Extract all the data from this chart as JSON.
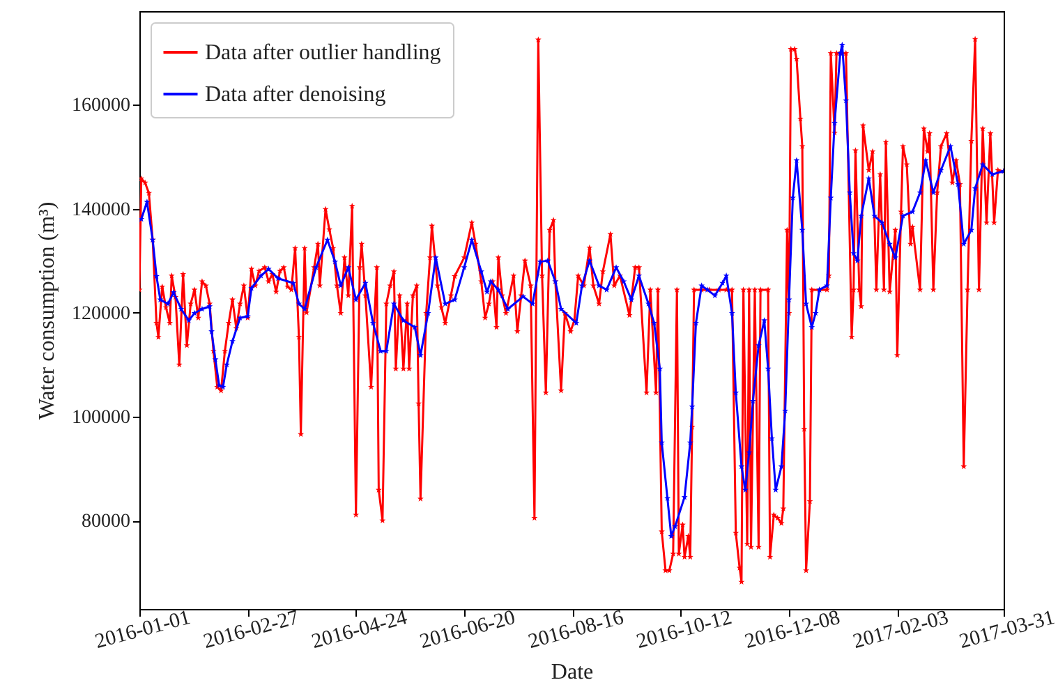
{
  "chart_data": {
    "type": "line",
    "xlabel": "Date",
    "ylabel": "Water consumption (m³)",
    "xlim": [
      "2016-01-01",
      "2017-03-31"
    ],
    "xticks": [
      "2016-01-01",
      "2016-02-27",
      "2016-04-24",
      "2016-06-20",
      "2016-08-16",
      "2016-10-12",
      "2016-12-08",
      "2017-02-03",
      "2017-03-31"
    ],
    "ylim": [
      63000,
      178000
    ],
    "yticks": [
      80000,
      100000,
      120000,
      140000,
      160000
    ],
    "grid": false,
    "legend": "top left",
    "marker": "star",
    "line_style": "solid",
    "series": [
      {
        "name": "Data after outlier handling",
        "color": "#ff0000",
        "x": [
          "2016-01-01",
          "2016-01-02",
          "2016-01-04",
          "2016-01-06",
          "2016-01-08",
          "2016-01-10",
          "2016-01-11",
          "2016-01-13",
          "2016-01-15",
          "2016-01-17",
          "2016-01-18",
          "2016-01-20",
          "2016-01-22",
          "2016-01-24",
          "2016-01-26",
          "2016-01-28",
          "2016-01-30",
          "2016-02-01",
          "2016-02-03",
          "2016-02-05",
          "2016-02-07",
          "2016-02-09",
          "2016-02-11",
          "2016-02-13",
          "2016-02-15",
          "2016-02-17",
          "2016-02-19",
          "2016-02-21",
          "2016-02-23",
          "2016-02-25",
          "2016-02-27",
          "2016-02-29",
          "2016-03-02",
          "2016-03-04",
          "2016-03-07",
          "2016-03-09",
          "2016-03-11",
          "2016-03-13",
          "2016-03-15",
          "2016-03-17",
          "2016-03-19",
          "2016-03-21",
          "2016-03-23",
          "2016-03-25",
          "2016-03-26",
          "2016-03-28",
          "2016-03-29",
          "2016-04-02",
          "2016-04-04",
          "2016-04-05",
          "2016-04-08",
          "2016-04-10",
          "2016-04-12",
          "2016-04-14",
          "2016-04-16",
          "2016-04-18",
          "2016-04-20",
          "2016-04-22",
          "2016-04-24",
          "2016-04-26",
          "2016-04-27",
          "2016-04-29",
          "2016-05-02",
          "2016-05-05",
          "2016-05-06",
          "2016-05-08",
          "2016-05-10",
          "2016-05-12",
          "2016-05-14",
          "2016-05-15",
          "2016-05-17",
          "2016-05-19",
          "2016-05-21",
          "2016-05-22",
          "2016-05-24",
          "2016-05-26",
          "2016-05-27",
          "2016-05-28",
          "2016-05-31",
          "2016-06-02",
          "2016-06-03",
          "2016-06-06",
          "2016-06-08",
          "2016-06-10",
          "2016-06-13",
          "2016-06-15",
          "2016-06-20",
          "2016-06-24",
          "2016-06-26",
          "2016-06-29",
          "2016-07-01",
          "2016-07-03",
          "2016-07-05",
          "2016-07-07",
          "2016-07-08",
          "2016-07-10",
          "2016-07-12",
          "2016-07-16",
          "2016-07-18",
          "2016-07-20",
          "2016-07-22",
          "2016-07-25",
          "2016-07-27",
          "2016-07-29",
          "2016-07-31",
          "2016-08-02",
          "2016-08-04",
          "2016-08-06",
          "2016-08-07",
          "2016-08-10",
          "2016-08-12",
          "2016-08-15",
          "2016-08-17",
          "2016-08-19",
          "2016-08-22",
          "2016-08-25",
          "2016-08-27",
          "2016-08-30",
          "2016-09-01",
          "2016-09-05",
          "2016-09-07",
          "2016-09-10",
          "2016-09-15",
          "2016-09-18",
          "2016-09-20",
          "2016-09-24",
          "2016-09-26",
          "2016-09-29",
          "2016-09-30",
          "2016-10-02",
          "2016-10-04",
          "2016-10-06",
          "2016-10-08",
          "2016-10-10",
          "2016-10-11",
          "2016-10-13",
          "2016-10-14",
          "2016-10-16",
          "2016-10-17",
          "2016-10-18",
          "2016-10-19",
          "2016-10-23",
          "2016-10-27",
          "2016-11-01",
          "2016-11-05",
          "2016-11-08",
          "2016-11-10",
          "2016-11-12",
          "2016-11-13",
          "2016-11-14",
          "2016-11-16",
          "2016-11-17",
          "2016-11-18",
          "2016-11-20",
          "2016-11-22",
          "2016-11-23",
          "2016-11-27",
          "2016-11-28",
          "2016-11-30",
          "2016-12-02",
          "2016-12-04",
          "2016-12-05",
          "2016-12-07",
          "2016-12-08",
          "2016-12-09",
          "2016-12-11",
          "2016-12-12",
          "2016-12-14",
          "2016-12-15",
          "2016-12-16",
          "2016-12-17",
          "2016-12-19",
          "2016-12-20",
          "2016-12-24",
          "2016-12-28",
          "2016-12-29",
          "2016-12-30",
          "2017-01-01",
          "2017-01-02",
          "2017-01-04",
          "2017-01-07",
          "2017-01-10",
          "2017-01-11",
          "2017-01-12",
          "2017-01-14",
          "2017-01-15",
          "2017-01-16",
          "2017-01-19",
          "2017-01-21",
          "2017-01-23",
          "2017-01-25",
          "2017-01-27",
          "2017-01-28",
          "2017-01-30",
          "2017-02-02",
          "2017-02-03",
          "2017-02-05",
          "2017-02-06",
          "2017-02-08",
          "2017-02-10",
          "2017-02-11",
          "2017-02-15",
          "2017-02-17",
          "2017-02-19",
          "2017-02-20",
          "2017-02-22",
          "2017-02-24",
          "2017-02-26",
          "2017-03-01",
          "2017-03-04",
          "2017-03-06",
          "2017-03-08",
          "2017-03-10",
          "2017-03-12",
          "2017-03-14",
          "2017-03-16",
          "2017-03-18",
          "2017-03-20",
          "2017-03-22",
          "2017-03-24",
          "2017-03-26",
          "2017-03-28",
          "2017-03-31"
        ],
        "values": [
          124400,
          145800,
          145000,
          143000,
          134000,
          118000,
          115300,
          125000,
          121000,
          118000,
          127100,
          123000,
          110000,
          127400,
          113700,
          121700,
          124400,
          119000,
          126000,
          125200,
          121700,
          112600,
          105700,
          105000,
          112600,
          118000,
          122500,
          117000,
          121700,
          125200,
          119000,
          128400,
          125200,
          128000,
          128700,
          126000,
          127400,
          124000,
          128000,
          128700,
          125000,
          124400,
          132400,
          115300,
          96600,
          132400,
          120000,
          128700,
          133200,
          125200,
          139900,
          136000,
          132400,
          125200,
          119900,
          130600,
          123300,
          140500,
          81100,
          128700,
          133200,
          123300,
          105700,
          128700,
          85900,
          80000,
          121700,
          125200,
          127900,
          109200,
          123300,
          109200,
          121700,
          109200,
          123300,
          125200,
          102500,
          84200,
          119900,
          130600,
          136700,
          125200,
          121000,
          118000,
          123300,
          127000,
          130600,
          137300,
          133200,
          126000,
          119000,
          121700,
          126000,
          117200,
          130600,
          123300,
          119900,
          127100,
          116400,
          123300,
          130000,
          125200,
          80500,
          172500,
          127100,
          104600,
          135900,
          137800,
          126000,
          105000,
          119900,
          116400,
          118500,
          127100,
          125200,
          132500,
          125200,
          121700,
          127900,
          135100,
          125200,
          127100,
          119500,
          128700,
          128700,
          104600,
          124400,
          104600,
          124400,
          77900,
          70400,
          70400,
          73600,
          124400,
          73600,
          79200,
          73000,
          77000,
          73000,
          98000,
          124400,
          124400,
          124400,
          124400,
          124400,
          124400,
          77600,
          70900,
          68200,
          124400,
          75500,
          124400,
          74900,
          124400,
          74900,
          124400,
          124400,
          73000,
          81100,
          80500,
          79500,
          82300,
          135900,
          119900,
          170700,
          170700,
          168800,
          157300,
          152000,
          97600,
          70400,
          83700,
          124400,
          124400,
          124400,
          127100,
          169900,
          154600,
          169900,
          170000,
          169900,
          115300,
          124400,
          151200,
          124400,
          121200,
          156000,
          147400,
          151000,
          124400,
          146600,
          124400,
          152800,
          124000,
          135900,
          111800,
          139400,
          152000,
          148500,
          133200,
          136500,
          124400,
          155400,
          151000,
          154500,
          124400,
          143100,
          152000,
          154500,
          145000,
          149300,
          144700,
          90400,
          124400,
          153000,
          172600,
          124400,
          155400,
          137300,
          154500,
          137300,
          147400,
          147200
        ]
      },
      {
        "name": "Data after denoising",
        "color": "#0000ff",
        "x": [
          "2016-01-02",
          "2016-01-05",
          "2016-01-08",
          "2016-01-10",
          "2016-01-12",
          "2016-01-16",
          "2016-01-19",
          "2016-01-23",
          "2016-01-27",
          "2016-01-30",
          "2016-02-03",
          "2016-02-07",
          "2016-02-08",
          "2016-02-10",
          "2016-02-12",
          "2016-02-14",
          "2016-02-16",
          "2016-02-19",
          "2016-02-23",
          "2016-02-27",
          "2016-02-29",
          "2016-03-05",
          "2016-03-09",
          "2016-03-14",
          "2016-03-22",
          "2016-03-25",
          "2016-03-28",
          "2016-04-03",
          "2016-04-09",
          "2016-04-13",
          "2016-04-16",
          "2016-04-20",
          "2016-04-24",
          "2016-04-29",
          "2016-05-03",
          "2016-05-07",
          "2016-05-10",
          "2016-05-14",
          "2016-05-19",
          "2016-05-25",
          "2016-05-28",
          "2016-06-01",
          "2016-06-05",
          "2016-06-10",
          "2016-06-15",
          "2016-06-20",
          "2016-06-24",
          "2016-06-29",
          "2016-07-02",
          "2016-07-04",
          "2016-07-08",
          "2016-07-13",
          "2016-07-21",
          "2016-07-26",
          "2016-07-30",
          "2016-08-03",
          "2016-08-07",
          "2016-08-10",
          "2016-08-18",
          "2016-08-21",
          "2016-08-25",
          "2016-08-30",
          "2016-09-03",
          "2016-09-08",
          "2016-09-12",
          "2016-09-16",
          "2016-09-20",
          "2016-09-25",
          "2016-09-28",
          "2016-10-01",
          "2016-10-02",
          "2016-10-05",
          "2016-10-07",
          "2016-10-09",
          "2016-10-14",
          "2016-10-17",
          "2016-10-18",
          "2016-10-20",
          "2016-10-23",
          "2016-10-26",
          "2016-10-30",
          "2016-11-03",
          "2016-11-05",
          "2016-11-08",
          "2016-11-10",
          "2016-11-13",
          "2016-11-15",
          "2016-11-17",
          "2016-11-19",
          "2016-11-22",
          "2016-11-25",
          "2016-11-27",
          "2016-11-29",
          "2016-12-01",
          "2016-12-04",
          "2016-12-06",
          "2016-12-08",
          "2016-12-10",
          "2016-12-12",
          "2016-12-15",
          "2016-12-17",
          "2016-12-20",
          "2016-12-22",
          "2016-12-24",
          "2016-12-28",
          "2016-12-30",
          "2017-01-01",
          "2017-01-04",
          "2017-01-05",
          "2017-01-07",
          "2017-01-09",
          "2017-01-11",
          "2017-01-13",
          "2017-01-15",
          "2017-01-19",
          "2017-01-22",
          "2017-01-26",
          "2017-01-30",
          "2017-02-02",
          "2017-02-06",
          "2017-02-11",
          "2017-02-15",
          "2017-02-18",
          "2017-02-22",
          "2017-02-26",
          "2017-03-03",
          "2017-03-07",
          "2017-03-10",
          "2017-03-14",
          "2017-03-16",
          "2017-03-20",
          "2017-03-25",
          "2017-03-31"
        ],
        "values": [
          138000,
          141300,
          134000,
          127000,
          122500,
          121700,
          123900,
          120700,
          118500,
          119900,
          120700,
          121200,
          116400,
          111000,
          106000,
          105700,
          110000,
          114500,
          119000,
          119300,
          124700,
          127100,
          128400,
          126600,
          125700,
          121700,
          120700,
          128700,
          134000,
          129800,
          125200,
          128700,
          122500,
          125700,
          118000,
          112600,
          112600,
          121700,
          118500,
          117200,
          111800,
          119900,
          130600,
          121700,
          122500,
          128700,
          134000,
          127900,
          124000,
          126000,
          124400,
          120700,
          123100,
          121700,
          129800,
          130000,
          126000,
          120700,
          118000,
          125200,
          130000,
          125200,
          124400,
          128700,
          126000,
          122500,
          127100,
          121700,
          118000,
          109200,
          95000,
          84300,
          77000,
          78900,
          84500,
          95000,
          101900,
          118000,
          125200,
          124400,
          123300,
          125700,
          127100,
          119900,
          104600,
          90400,
          85900,
          93100,
          103000,
          113700,
          118500,
          109200,
          95800,
          85900,
          90400,
          101100,
          122500,
          142100,
          149300,
          135900,
          121700,
          117200,
          119900,
          124400,
          125200,
          142100,
          156500,
          169900,
          171500,
          160800,
          143100,
          131400,
          130000,
          138600,
          145800,
          138600,
          137300,
          133200,
          130600,
          138600,
          139400,
          143100,
          149300,
          143100,
          147400,
          152000,
          144700,
          133200,
          135900,
          143900,
          148500,
          146600,
          147200
        ]
      }
    ]
  }
}
